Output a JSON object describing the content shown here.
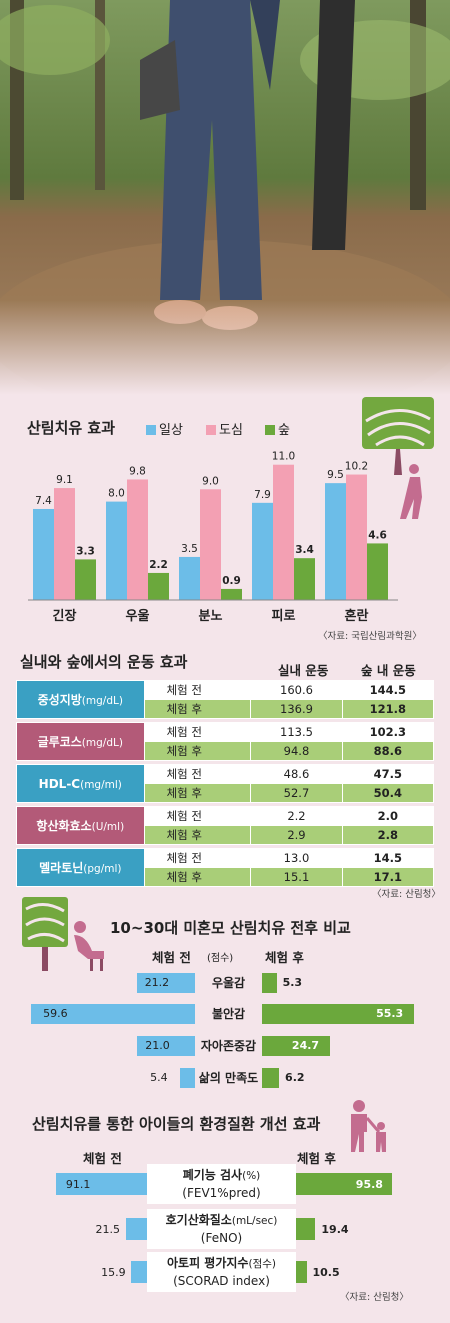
{
  "colors": {
    "blue": "#6cbde8",
    "pink": "#f3a0b3",
    "green": "#6ba83c",
    "teal": "#3aa0c3",
    "magenta": "#b35a78",
    "light_green": "#a9ce78",
    "tree": "#73a83f",
    "trunk": "#8b4b63",
    "person": "#c36c8f"
  },
  "chart1": {
    "title": "산림치유 효과",
    "legend": [
      "일상",
      "도심",
      "숲"
    ],
    "source": "〈자료: 국립산림과학원〉"
  },
  "chart2": {
    "title": "실내와 숲에서의 운동 효과",
    "col_indoor": "실내 운동",
    "col_forest": "숲 내 운동",
    "source": "〈자료: 산림청〉"
  },
  "chart3": {
    "title": "10~30대 미혼모 산림치유 전후 비교",
    "before": "체험 전",
    "unit": "(점수)",
    "after": "체험 후"
  },
  "chart4": {
    "title": "산림치유를 통한 아이들의 환경질환 개선 효과",
    "before": "체험 전",
    "after": "체험 후",
    "source": "〈자료: 산림청〉"
  },
  "chart_data": [
    {
      "type": "bar",
      "title": "산림치유 효과",
      "categories": [
        "긴장",
        "우울",
        "분노",
        "피로",
        "혼란"
      ],
      "series": [
        {
          "name": "일상",
          "values": [
            7.4,
            8.0,
            3.5,
            7.9,
            9.5
          ]
        },
        {
          "name": "도심",
          "values": [
            9.1,
            9.8,
            9.0,
            11.0,
            10.2
          ]
        },
        {
          "name": "숲",
          "values": [
            3.3,
            2.2,
            0.9,
            3.4,
            4.6
          ]
        }
      ],
      "value_labels": [
        [
          "7.4",
          "9.1",
          "3.3"
        ],
        [
          "8.0",
          "9.8",
          "2.2"
        ],
        [
          "3.5",
          "9.0",
          "0.9"
        ],
        [
          "7.9",
          "11.0",
          "3.4"
        ],
        [
          "9.5",
          "10.2",
          "4.6"
        ]
      ]
    },
    {
      "type": "table",
      "title": "실내와 숲에서의 운동 효과",
      "columns": [
        "실내 운동",
        "숲 내 운동"
      ],
      "rows": [
        {
          "name": "중성지방",
          "unit": "(mg/dL)",
          "before_label": "체험 전",
          "after_label": "체험 후",
          "before": [
            "160.6",
            "144.5"
          ],
          "after": [
            "136.9",
            "121.8"
          ]
        },
        {
          "name": "글루코스",
          "unit": "(mg/dL)",
          "before_label": "체험 전",
          "after_label": "체험 후",
          "before": [
            "113.5",
            "102.3"
          ],
          "after": [
            "94.8",
            "88.6"
          ]
        },
        {
          "name": "HDL-C",
          "unit": "(mg/ml)",
          "before_label": "체험 전",
          "after_label": "체험 후",
          "before": [
            "48.6",
            "47.5"
          ],
          "after": [
            "52.7",
            "50.4"
          ]
        },
        {
          "name": "항산화효소",
          "unit": "(U/ml)",
          "before_label": "체험 전",
          "after_label": "체험 후",
          "before": [
            "2.2",
            "2.0"
          ],
          "after": [
            "2.9",
            "2.8"
          ]
        },
        {
          "name": "멜라토닌",
          "unit": "(pg/ml)",
          "before_label": "체험 전",
          "after_label": "체험 후",
          "before": [
            "13.0",
            "14.5"
          ],
          "after": [
            "15.1",
            "17.1"
          ]
        }
      ]
    },
    {
      "type": "bar",
      "title": "10~30대 미혼모 산림치유 전후 비교",
      "categories": [
        "우울감",
        "불안감",
        "자아존중감",
        "삶의 만족도"
      ],
      "series": [
        {
          "name": "체험 전",
          "values": [
            21.2,
            59.6,
            21.0,
            5.4
          ]
        },
        {
          "name": "체험 후",
          "values": [
            5.3,
            55.3,
            24.7,
            6.2
          ]
        }
      ],
      "value_labels": [
        [
          "21.2",
          "5.3"
        ],
        [
          "59.6",
          "55.3"
        ],
        [
          "21.0",
          "24.7"
        ],
        [
          "5.4",
          "6.2"
        ]
      ]
    },
    {
      "type": "bar",
      "title": "산림치유를 통한 아이들의 환경질환 개선 효과",
      "categories": [
        {
          "name": "폐기능 검사",
          "unit": "(%)",
          "sub": "(FEV1%pred)"
        },
        {
          "name": "호기산화질소",
          "unit": "(mL/sec)",
          "sub": "(FeNO)"
        },
        {
          "name": "아토피 평가지수",
          "unit": "(점수)",
          "sub": "(SCORAD index)"
        }
      ],
      "series": [
        {
          "name": "체험 전",
          "values": [
            91.1,
            21.5,
            15.9
          ]
        },
        {
          "name": "체험 후",
          "values": [
            95.8,
            19.4,
            10.5
          ]
        }
      ],
      "value_labels": [
        [
          "91.1",
          "95.8"
        ],
        [
          "21.5",
          "19.4"
        ],
        [
          "15.9",
          "10.5"
        ]
      ]
    }
  ]
}
